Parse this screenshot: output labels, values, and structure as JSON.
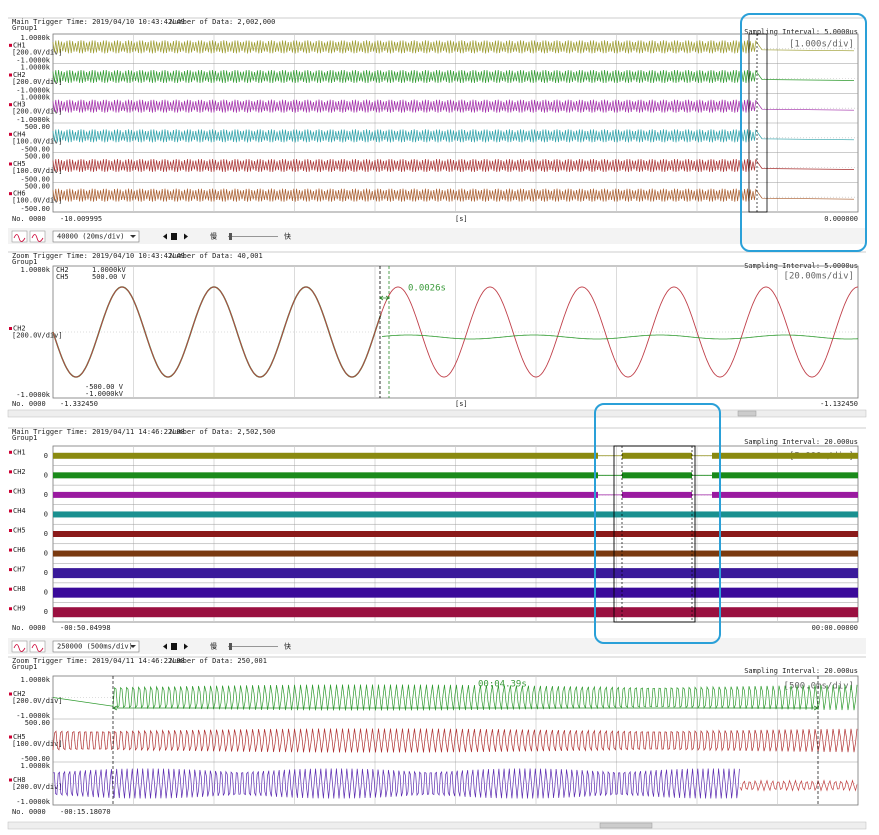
{
  "panels": [
    {
      "trigger": "Main Trigger Time: 2019/04/10 10:43:42.49",
      "data_count": "Number of Data: 2,002,000",
      "group": "Group1",
      "sampling": "Sampling Interval: 5.0000us",
      "div": "[1.000s/div]",
      "channels": [
        {
          "name": "CH1",
          "scale": "[200.0V/div]",
          "top": "1.0000k",
          "bottom": "-1.0000k"
        },
        {
          "name": "CH2",
          "scale": "[200.0V/div]",
          "top": "1.0000k",
          "bottom": "-1.0000k"
        },
        {
          "name": "CH3",
          "scale": "[200.0V/div]",
          "top": "1.0000k",
          "bottom": "-1.0000k"
        },
        {
          "name": "CH4",
          "scale": "[100.0V/div]",
          "top": "500.00",
          "bottom": "-500.00"
        },
        {
          "name": "CH5",
          "scale": "[100.0V/div]",
          "top": "500.00",
          "bottom": "-500.00"
        },
        {
          "name": "CH6",
          "scale": "[100.0V/div]",
          "top": "500.00",
          "bottom": "-500.00"
        }
      ],
      "footer": {
        "no": "No. 0000",
        "start": "-10.009995",
        "unit": "[s]",
        "end": "0.000000"
      }
    },
    {
      "trigger": "Zoom Trigger Time: 2019/04/10 10:43:42.49",
      "data_count": "Number of Data: 40,001",
      "group": "Group1",
      "sampling": "Sampling Interval: 5.0000us",
      "div": "[20.00ms/div]",
      "channels": [
        {
          "name": "CH2",
          "scale": "[200.0V/div]",
          "top": "1.0000k",
          "bottom": "-1.0000k"
        }
      ],
      "legend": [
        "CH2",
        "1.0000kV",
        "CH5",
        "500.00 V"
      ],
      "legend_bottom": [
        "-500.00 V",
        "-1.0000kV"
      ],
      "measure": "0.0026s",
      "footer": {
        "no": "No. 0000",
        "start": "-1.332450",
        "unit": "[s]",
        "end": "-1.132450"
      }
    },
    {
      "trigger": "Main Trigger Time: 2019/04/11 14:46:22.08",
      "data_count": "Number of Data: 2,502,500",
      "group": "Group1",
      "sampling": "Sampling Interval: 20.000us",
      "div": "[5.000s/div]",
      "channels": [
        {
          "name": "CH1",
          "zero": "0"
        },
        {
          "name": "CH2",
          "zero": "0"
        },
        {
          "name": "CH3",
          "zero": "0"
        },
        {
          "name": "CH4",
          "zero": "0"
        },
        {
          "name": "CH5",
          "zero": "0"
        },
        {
          "name": "CH6",
          "zero": "0"
        },
        {
          "name": "CH7",
          "zero": "0"
        },
        {
          "name": "CH8",
          "zero": "0"
        },
        {
          "name": "CH9",
          "zero": "0"
        }
      ],
      "footer": {
        "no": "No. 0000",
        "start": "-00:50.04998",
        "end": "00:00.00000"
      }
    },
    {
      "trigger": "Zoom Trigger Time: 2019/04/11 14:46:22.08",
      "data_count": "Number of Data: 250,001",
      "group": "Group1",
      "sampling": "Sampling Interval: 20.000us",
      "div": "[500.0ms/div]",
      "measure": "00:04.39s",
      "channels": [
        {
          "name": "CH2",
          "scale": "[200.0V/div]",
          "top": "1.0000k",
          "bottom": "-1.0000k"
        },
        {
          "name": "CH5",
          "scale": "[100.0V/div]",
          "top": "500.00",
          "bottom": "-500.00"
        },
        {
          "name": "CH8",
          "scale": "[200.0V/div]",
          "top": "1.0000k",
          "bottom": "-1.0000k"
        }
      ],
      "footer": {
        "no": "No. 0000",
        "start": "-00:15.18070"
      }
    }
  ],
  "toolbars": [
    {
      "zoom": "40000 (20ms/div)",
      "slow": "慢",
      "fast": "快"
    },
    {
      "zoom": "250000 (500ms/div)",
      "slow": "慢",
      "fast": "快"
    }
  ]
}
